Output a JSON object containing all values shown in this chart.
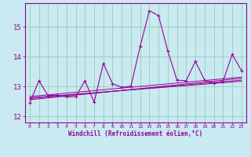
{
  "title": "",
  "xlabel": "Windchill (Refroidissement éolien,°C)",
  "xlim": [
    -0.5,
    23.5
  ],
  "ylim": [
    11.8,
    15.8
  ],
  "yticks": [
    12,
    13,
    14,
    15
  ],
  "xticks": [
    0,
    1,
    2,
    3,
    4,
    5,
    6,
    7,
    8,
    9,
    10,
    11,
    12,
    13,
    14,
    15,
    16,
    17,
    18,
    19,
    20,
    21,
    22,
    23
  ],
  "bg_color": "#c8eaf0",
  "line_color": "#990099",
  "grid_color": "#99ccbb",
  "series1_x": [
    0,
    1,
    2,
    3,
    4,
    5,
    6,
    7,
    8,
    9,
    10,
    11,
    12,
    13,
    14,
    15,
    16,
    17,
    18,
    19,
    20,
    21,
    22,
    23
  ],
  "series1_y": [
    12.45,
    13.2,
    12.7,
    12.72,
    12.66,
    12.66,
    13.2,
    12.48,
    13.78,
    13.1,
    12.98,
    13.02,
    14.35,
    15.55,
    15.38,
    14.2,
    13.22,
    13.2,
    13.85,
    13.22,
    13.12,
    13.18,
    14.08,
    13.55
  ],
  "trend1_x": [
    0,
    23
  ],
  "trend1_y": [
    12.56,
    13.28
  ],
  "trend2_x": [
    0,
    23
  ],
  "trend2_y": [
    12.6,
    13.22
  ],
  "trend3_x": [
    0,
    23
  ],
  "trend3_y": [
    12.63,
    13.18
  ],
  "trend4_x": [
    0,
    23
  ],
  "trend4_y": [
    12.67,
    13.32
  ]
}
